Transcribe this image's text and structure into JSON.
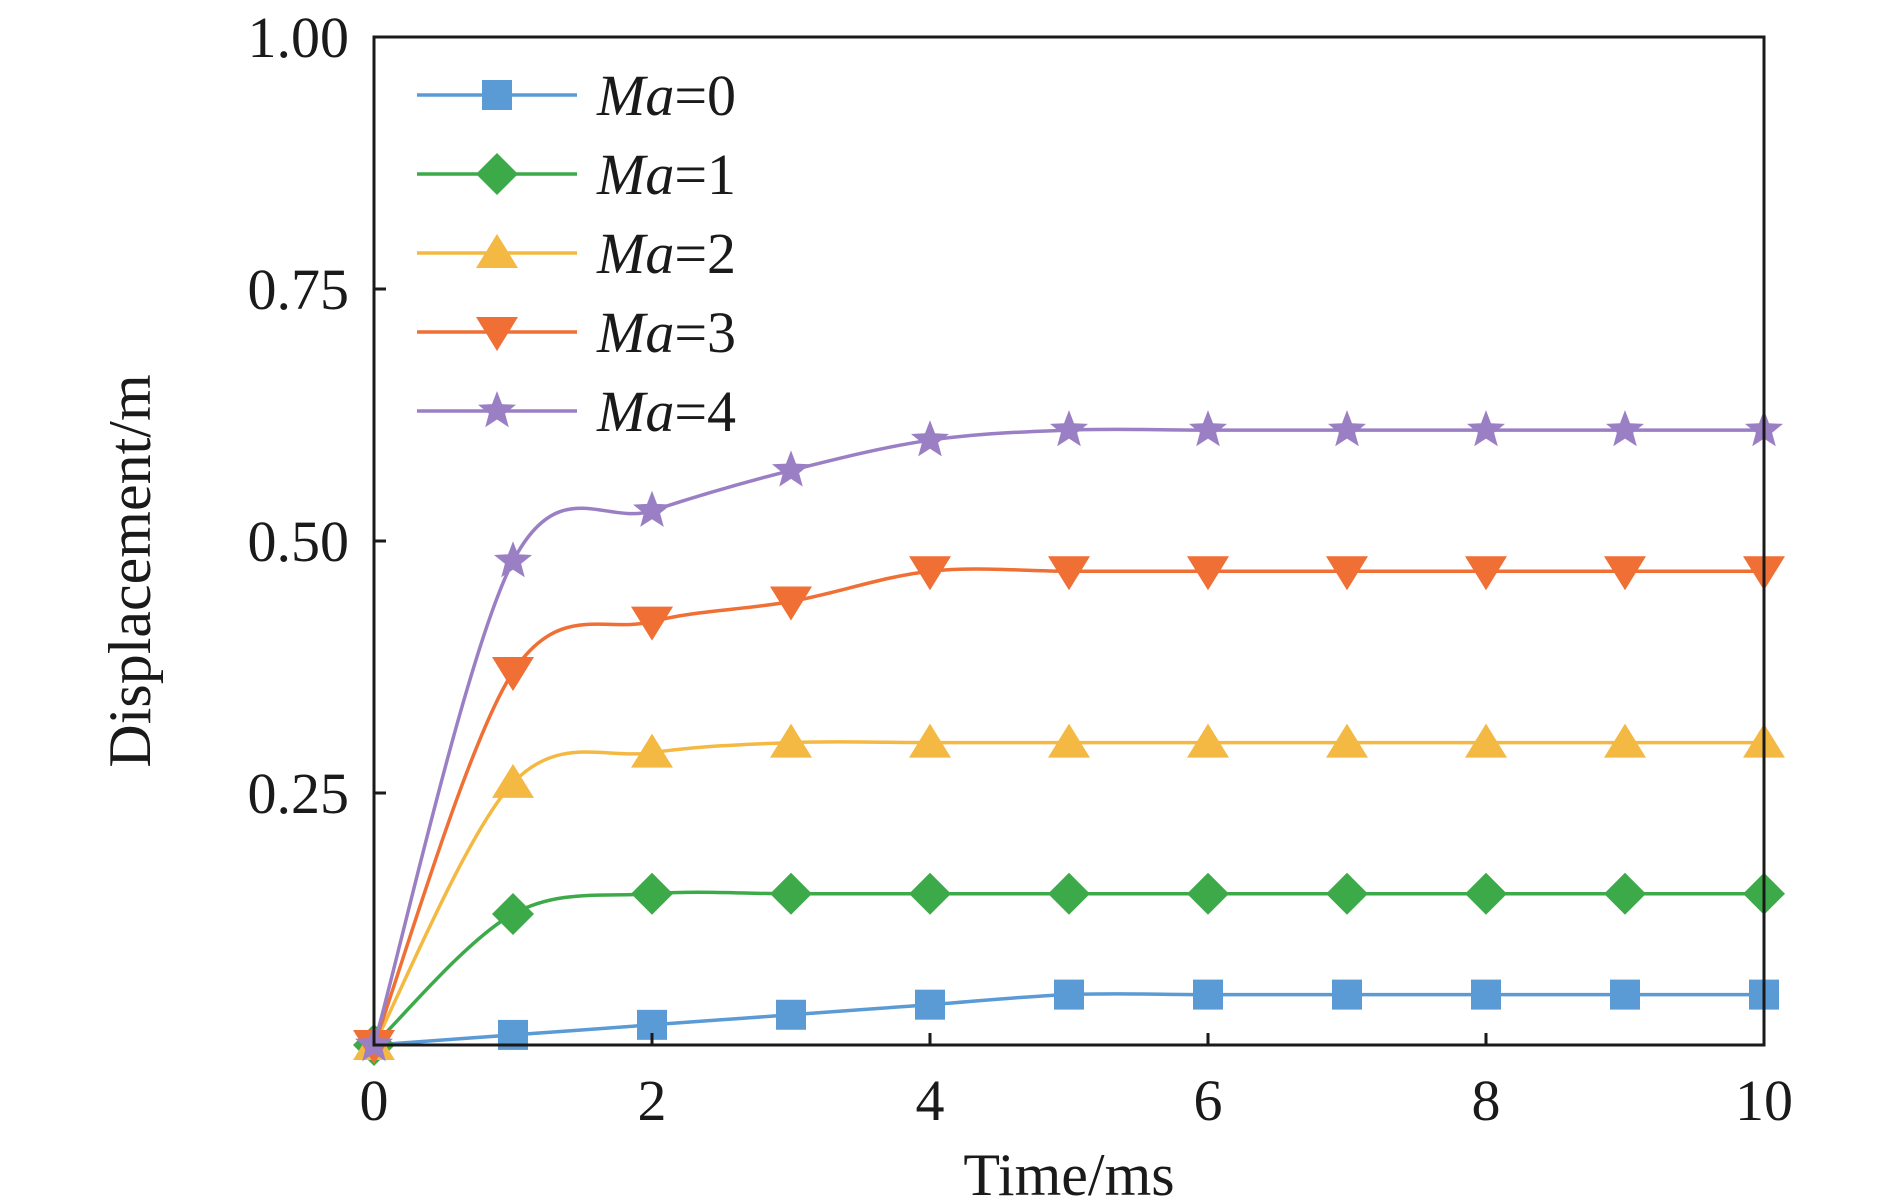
{
  "chart_data": {
    "type": "line",
    "title": "",
    "xlabel": "Time/ms",
    "ylabel": "Displacement/m",
    "xlim": [
      0,
      10
    ],
    "ylim": [
      0,
      1.0
    ],
    "xticks": [
      0,
      2,
      4,
      6,
      8,
      10
    ],
    "yticks": [
      0.25,
      0.5,
      0.75,
      1.0
    ],
    "xtick_labels": [
      "0",
      "2",
      "4",
      "6",
      "8",
      "10"
    ],
    "ytick_labels": [
      "0.25",
      "0.50",
      "0.75",
      "1.00"
    ],
    "grid": false,
    "legend_position": "top-left",
    "x": [
      0,
      1,
      2,
      3,
      4,
      5,
      6,
      7,
      8,
      9,
      10
    ],
    "series": [
      {
        "name": "Ma=0",
        "name_italic": "Ma",
        "name_rest": "=0",
        "color": "#5b9bd5",
        "marker": "square",
        "values": [
          0,
          0.01,
          0.02,
          0.03,
          0.04,
          0.05,
          0.05,
          0.05,
          0.05,
          0.05,
          0.05
        ]
      },
      {
        "name": "Ma=1",
        "name_italic": "Ma",
        "name_rest": "=1",
        "color": "#3daa4a",
        "marker": "diamond",
        "values": [
          0,
          0.13,
          0.15,
          0.15,
          0.15,
          0.15,
          0.15,
          0.15,
          0.15,
          0.15,
          0.15
        ]
      },
      {
        "name": "Ma=2",
        "name_italic": "Ma",
        "name_rest": "=2",
        "color": "#f4b942",
        "marker": "triangle-up",
        "values": [
          0,
          0.26,
          0.29,
          0.3,
          0.3,
          0.3,
          0.3,
          0.3,
          0.3,
          0.3,
          0.3
        ]
      },
      {
        "name": "Ma=3",
        "name_italic": "Ma",
        "name_rest": "=3",
        "color": "#ef6f35",
        "marker": "triangle-down",
        "values": [
          0,
          0.37,
          0.42,
          0.44,
          0.47,
          0.47,
          0.47,
          0.47,
          0.47,
          0.47,
          0.47
        ]
      },
      {
        "name": "Ma=4",
        "name_italic": "Ma",
        "name_rest": "=4",
        "color": "#9b7fc4",
        "marker": "star",
        "values": [
          0,
          0.48,
          0.53,
          0.57,
          0.6,
          0.61,
          0.61,
          0.61,
          0.61,
          0.61,
          0.61
        ]
      }
    ]
  }
}
